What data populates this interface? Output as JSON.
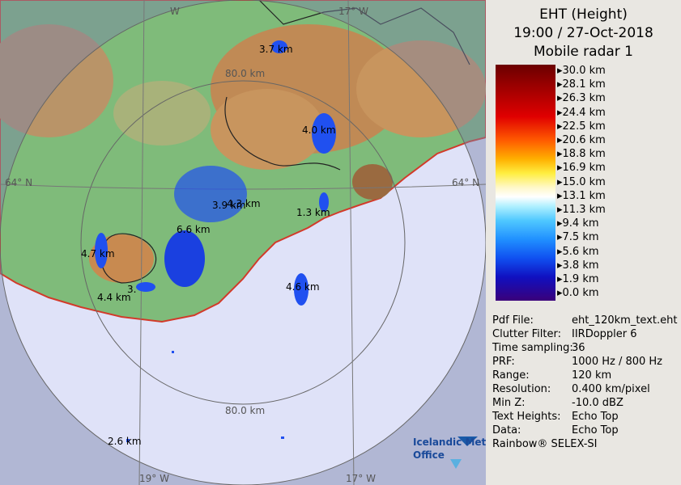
{
  "map": {
    "grid_labels": [
      "W",
      "17° W",
      "80.0 km",
      "64° N",
      "64° N",
      "80.0 km",
      "19° W",
      "17° W"
    ],
    "echo_labels": [
      "3.7 km",
      "4.0 km",
      "4.3 km",
      "3.9 km",
      "1.3 km",
      "6.6 km",
      "4.7 km",
      "3.",
      "4.4 km",
      "4.6 km",
      "2.6 km"
    ],
    "logo": [
      "Icelandic Met",
      "Office"
    ]
  },
  "panel": {
    "title": [
      "EHT (Height)",
      "19:00 / 27-Oct-2018",
      "Mobile radar 1"
    ],
    "scale_labels": [
      "30.0 km",
      "28.1 km",
      "26.3 km",
      "24.4 km",
      "22.5 km",
      "20.6 km",
      "18.8 km",
      "16.9 km",
      "15.0 km",
      "13.1 km",
      "11.3 km",
      "9.4 km",
      "7.5 km",
      "5.6 km",
      "3.8 km",
      "1.9 km",
      "0.0 km"
    ],
    "info": [
      [
        "Pdf File:",
        "eht_120km_text.eht"
      ],
      [
        "Clutter Filter:",
        "IIRDoppler 6"
      ],
      [
        "Time sampling:",
        "36"
      ],
      [
        "PRF:",
        "1000 Hz / 800 Hz"
      ],
      [
        "Range:",
        "120 km"
      ],
      [
        "Resolution:",
        "0.400 km/pixel"
      ],
      [
        "Min Z:",
        "-10.0 dBZ"
      ],
      [
        "Text Heights:",
        "Echo Top"
      ],
      [
        "Data:",
        "Echo Top"
      ]
    ],
    "footer": "Rainbow® SELEX-SI"
  }
}
